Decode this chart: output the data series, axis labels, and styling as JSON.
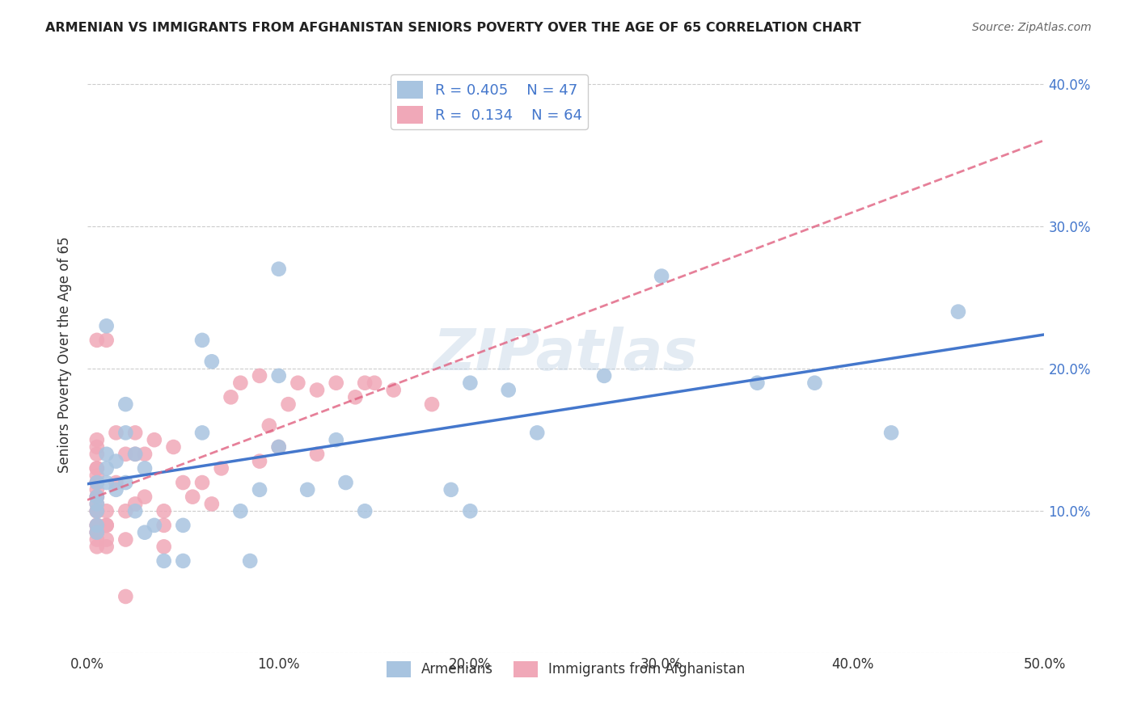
{
  "title": "ARMENIAN VS IMMIGRANTS FROM AFGHANISTAN SENIORS POVERTY OVER THE AGE OF 65 CORRELATION CHART",
  "source": "Source: ZipAtlas.com",
  "xlabel_bottom": "",
  "ylabel": "Seniors Poverty Over the Age of 65",
  "xlim": [
    0.0,
    0.5
  ],
  "ylim": [
    0.0,
    0.42
  ],
  "xticks": [
    0.0,
    0.1,
    0.2,
    0.3,
    0.4,
    0.5
  ],
  "yticks": [
    0.0,
    0.1,
    0.2,
    0.3,
    0.4
  ],
  "xtick_labels": [
    "0.0%",
    "10.0%",
    "20.0%",
    "30.0%",
    "40.0%",
    "50.0%"
  ],
  "ytick_labels_right": [
    "",
    "10.0%",
    "20.0%",
    "30.0%",
    "40.0%"
  ],
  "legend_armenians_R": "0.405",
  "legend_armenians_N": "47",
  "legend_afghan_R": "0.134",
  "legend_afghan_N": "64",
  "armenian_color": "#a8c4e0",
  "afghan_color": "#f0a8b8",
  "armenian_line_color": "#4477cc",
  "afghan_line_color": "#e06080",
  "watermark": "ZIPatlas",
  "armenians_x": [
    0.02,
    0.01,
    0.01,
    0.005,
    0.005,
    0.005,
    0.005,
    0.005,
    0.005,
    0.01,
    0.01,
    0.015,
    0.015,
    0.02,
    0.02,
    0.025,
    0.025,
    0.03,
    0.03,
    0.035,
    0.04,
    0.05,
    0.05,
    0.06,
    0.06,
    0.065,
    0.08,
    0.085,
    0.09,
    0.1,
    0.1,
    0.1,
    0.115,
    0.13,
    0.135,
    0.145,
    0.19,
    0.2,
    0.2,
    0.22,
    0.235,
    0.27,
    0.3,
    0.35,
    0.38,
    0.42,
    0.455
  ],
  "armenians_y": [
    0.175,
    0.23,
    0.14,
    0.12,
    0.11,
    0.105,
    0.1,
    0.09,
    0.085,
    0.13,
    0.12,
    0.115,
    0.135,
    0.155,
    0.12,
    0.14,
    0.1,
    0.13,
    0.085,
    0.09,
    0.065,
    0.065,
    0.09,
    0.22,
    0.155,
    0.205,
    0.1,
    0.065,
    0.115,
    0.27,
    0.195,
    0.145,
    0.115,
    0.15,
    0.12,
    0.1,
    0.115,
    0.19,
    0.1,
    0.185,
    0.155,
    0.195,
    0.265,
    0.19,
    0.19,
    0.155,
    0.24
  ],
  "afghans_x": [
    0.005,
    0.005,
    0.005,
    0.005,
    0.005,
    0.005,
    0.005,
    0.005,
    0.005,
    0.005,
    0.005,
    0.005,
    0.005,
    0.005,
    0.005,
    0.005,
    0.005,
    0.005,
    0.005,
    0.005,
    0.005,
    0.01,
    0.01,
    0.01,
    0.01,
    0.01,
    0.01,
    0.015,
    0.015,
    0.02,
    0.02,
    0.02,
    0.02,
    0.025,
    0.025,
    0.025,
    0.03,
    0.03,
    0.035,
    0.04,
    0.04,
    0.04,
    0.045,
    0.05,
    0.055,
    0.06,
    0.065,
    0.07,
    0.075,
    0.08,
    0.09,
    0.09,
    0.095,
    0.1,
    0.105,
    0.11,
    0.12,
    0.12,
    0.13,
    0.14,
    0.145,
    0.15,
    0.16,
    0.18
  ],
  "afghans_y": [
    0.075,
    0.08,
    0.085,
    0.085,
    0.09,
    0.09,
    0.1,
    0.1,
    0.105,
    0.11,
    0.11,
    0.115,
    0.12,
    0.12,
    0.125,
    0.13,
    0.13,
    0.14,
    0.145,
    0.15,
    0.22,
    0.075,
    0.08,
    0.09,
    0.09,
    0.1,
    0.22,
    0.12,
    0.155,
    0.04,
    0.08,
    0.1,
    0.14,
    0.105,
    0.14,
    0.155,
    0.11,
    0.14,
    0.15,
    0.075,
    0.09,
    0.1,
    0.145,
    0.12,
    0.11,
    0.12,
    0.105,
    0.13,
    0.18,
    0.19,
    0.135,
    0.195,
    0.16,
    0.145,
    0.175,
    0.19,
    0.14,
    0.185,
    0.19,
    0.18,
    0.19,
    0.19,
    0.185,
    0.175
  ]
}
